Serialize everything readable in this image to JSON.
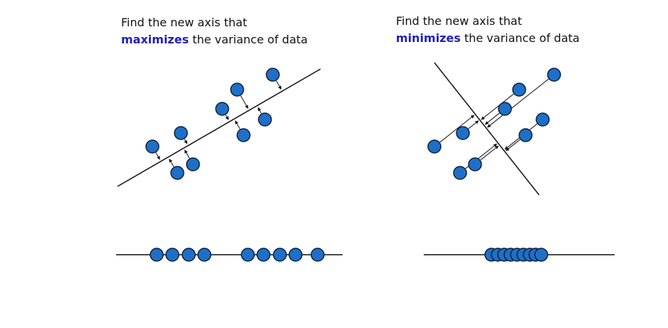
{
  "colors": {
    "point_fill": "#1f6fc7",
    "point_stroke": "#0b1f3a",
    "keyword": "#1f1fb8",
    "line": "#111111"
  },
  "icons": {
    "point": "filled-circle",
    "projection": "arrow"
  },
  "left_panel": {
    "caption_line1": "Find the new axis that",
    "caption_keyword": "maximizes",
    "caption_rest": " the variance of data"
  },
  "right_panel": {
    "caption_line1": "Find the new axis that",
    "caption_keyword": "minimizes",
    "caption_rest": " the variance of data"
  }
}
